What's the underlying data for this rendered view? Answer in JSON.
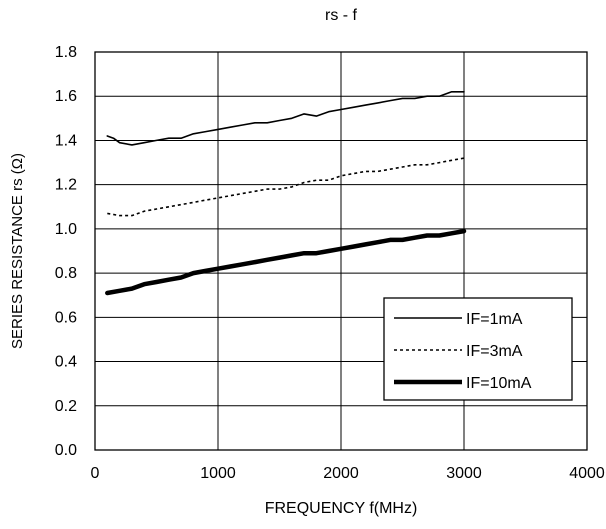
{
  "chart_data": {
    "type": "line",
    "title": "rs - f",
    "xlabel": "FREQUENCY f(MHz)",
    "ylabel": "SERIES RESISTANCE   rs (Ω)",
    "xlim": [
      0,
      4000
    ],
    "ylim": [
      0.0,
      1.8
    ],
    "xticks": [
      "0",
      "1000",
      "2000",
      "3000",
      "4000"
    ],
    "yticks": [
      "0.0",
      "0.2",
      "0.4",
      "0.6",
      "0.8",
      "1.0",
      "1.2",
      "1.4",
      "1.6",
      "1.8"
    ],
    "grid": true,
    "legend_position": "bottom-right",
    "series": [
      {
        "name": "IF=1mA",
        "style": "solid-thin",
        "color": "#000000",
        "x": [
          100,
          150,
          200,
          300,
          400,
          500,
          600,
          700,
          800,
          900,
          1000,
          1100,
          1200,
          1300,
          1400,
          1500,
          1600,
          1700,
          1800,
          1900,
          2000,
          2100,
          2200,
          2300,
          2400,
          2500,
          2600,
          2700,
          2800,
          2900,
          3000
        ],
        "y": [
          1.42,
          1.41,
          1.39,
          1.38,
          1.39,
          1.4,
          1.41,
          1.41,
          1.43,
          1.44,
          1.45,
          1.46,
          1.47,
          1.48,
          1.48,
          1.49,
          1.5,
          1.52,
          1.51,
          1.53,
          1.54,
          1.55,
          1.56,
          1.57,
          1.58,
          1.59,
          1.59,
          1.6,
          1.6,
          1.62,
          1.62
        ]
      },
      {
        "name": "IF=3mA",
        "style": "dotted",
        "color": "#000000",
        "x": [
          100,
          200,
          300,
          400,
          500,
          600,
          700,
          800,
          900,
          1000,
          1100,
          1200,
          1300,
          1400,
          1500,
          1600,
          1700,
          1800,
          1900,
          2000,
          2100,
          2200,
          2300,
          2400,
          2500,
          2600,
          2700,
          2800,
          2900,
          3000
        ],
        "y": [
          1.07,
          1.06,
          1.06,
          1.08,
          1.09,
          1.1,
          1.11,
          1.12,
          1.13,
          1.14,
          1.15,
          1.16,
          1.17,
          1.18,
          1.18,
          1.19,
          1.21,
          1.22,
          1.22,
          1.24,
          1.25,
          1.26,
          1.26,
          1.27,
          1.28,
          1.29,
          1.29,
          1.3,
          1.31,
          1.32
        ]
      },
      {
        "name": "IF=10mA",
        "style": "solid-thick",
        "color": "#000000",
        "x": [
          100,
          200,
          300,
          400,
          500,
          600,
          700,
          800,
          900,
          1000,
          1100,
          1200,
          1300,
          1400,
          1500,
          1600,
          1700,
          1800,
          1900,
          2000,
          2100,
          2200,
          2300,
          2400,
          2500,
          2600,
          2700,
          2800,
          2900,
          3000
        ],
        "y": [
          0.71,
          0.72,
          0.73,
          0.75,
          0.76,
          0.77,
          0.78,
          0.8,
          0.81,
          0.82,
          0.83,
          0.84,
          0.85,
          0.86,
          0.87,
          0.88,
          0.89,
          0.89,
          0.9,
          0.91,
          0.92,
          0.93,
          0.94,
          0.95,
          0.95,
          0.96,
          0.97,
          0.97,
          0.98,
          0.99
        ]
      }
    ]
  }
}
